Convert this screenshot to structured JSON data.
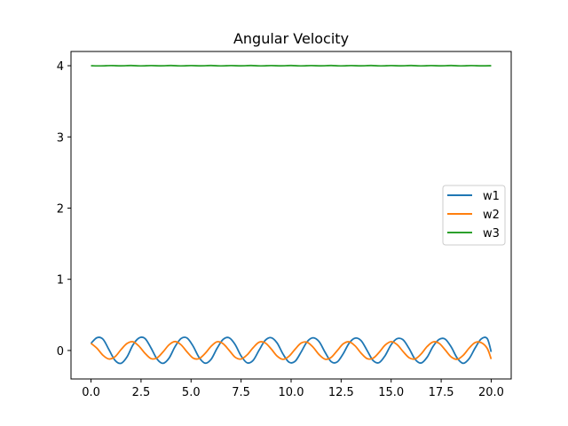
{
  "chart_data": {
    "type": "line",
    "title": "Angular Velocity",
    "xlabel": "",
    "ylabel": "",
    "xlim": [
      -1,
      21
    ],
    "ylim": [
      -0.4,
      4.2
    ],
    "xticks": [
      0.0,
      2.5,
      5.0,
      7.5,
      10.0,
      12.5,
      15.0,
      17.5,
      20.0
    ],
    "xtick_labels": [
      "0.0",
      "2.5",
      "5.0",
      "7.5",
      "10.0",
      "12.5",
      "15.0",
      "17.5",
      "20.0"
    ],
    "yticks": [
      0,
      1,
      2,
      3,
      4
    ],
    "ytick_labels": [
      "0",
      "1",
      "2",
      "3",
      "4"
    ],
    "grid": false,
    "legend_position": "center-right",
    "series": [
      {
        "name": "w1",
        "color": "#1f77b4",
        "x": [
          0.0,
          0.3,
          0.6,
          0.9,
          1.2,
          1.5,
          1.8,
          2.1,
          2.4,
          2.7,
          3.0,
          3.3,
          3.6,
          3.9,
          4.2,
          4.5,
          4.8,
          5.1,
          5.4,
          5.7,
          6.0,
          6.3,
          6.6,
          6.9,
          7.2,
          7.5,
          7.8,
          8.1,
          8.4,
          8.7,
          9.0,
          9.3,
          9.6,
          9.9,
          10.2,
          10.5,
          10.8,
          11.1,
          11.4,
          11.7,
          12.0,
          12.3,
          12.6,
          12.9,
          13.2,
          13.5,
          13.8,
          14.1,
          14.4,
          14.7,
          15.0,
          15.3,
          15.6,
          15.9,
          16.2,
          16.5,
          16.8,
          17.1,
          17.4,
          17.7,
          18.0,
          18.3,
          18.6,
          18.9,
          19.2,
          19.5,
          19.8,
          20.0
        ],
        "y": [
          0.1,
          0.18,
          0.158,
          0.01,
          -0.138,
          -0.18,
          -0.09,
          0.08,
          0.176,
          0.168,
          0.035,
          -0.12,
          -0.18,
          -0.108,
          0.054,
          0.168,
          0.175,
          0.062,
          -0.098,
          -0.178,
          -0.125,
          0.03,
          0.155,
          0.179,
          0.085,
          -0.076,
          -0.173,
          -0.14,
          0.004,
          0.14,
          0.18,
          0.106,
          -0.052,
          -0.165,
          -0.152,
          -0.022,
          0.123,
          0.178,
          0.124,
          -0.026,
          -0.156,
          -0.162,
          -0.048,
          0.103,
          0.174,
          0.138,
          0.0,
          -0.142,
          -0.17,
          -0.072,
          0.082,
          0.166,
          0.15,
          0.026,
          -0.125,
          -0.176,
          -0.094,
          0.06,
          0.156,
          0.16,
          0.05,
          -0.106,
          -0.18,
          -0.114,
          0.036,
          0.162,
          0.168,
          -0.02
        ]
      },
      {
        "name": "w2",
        "color": "#ff7f0e",
        "x": [
          0.0,
          0.3,
          0.6,
          0.9,
          1.2,
          1.5,
          1.8,
          2.1,
          2.4,
          2.7,
          3.0,
          3.3,
          3.6,
          3.9,
          4.2,
          4.5,
          4.8,
          5.1,
          5.4,
          5.7,
          6.0,
          6.3,
          6.6,
          6.9,
          7.2,
          7.5,
          7.8,
          8.1,
          8.4,
          8.7,
          9.0,
          9.3,
          9.6,
          9.9,
          10.2,
          10.5,
          10.8,
          11.1,
          11.4,
          11.7,
          12.0,
          12.3,
          12.6,
          12.9,
          13.2,
          13.5,
          13.8,
          14.1,
          14.4,
          14.7,
          15.0,
          15.3,
          15.6,
          15.9,
          16.2,
          16.5,
          16.8,
          17.1,
          17.4,
          17.7,
          18.0,
          18.3,
          18.6,
          18.9,
          19.2,
          19.5,
          19.8,
          20.0
        ],
        "y": [
          0.1,
          0.03,
          -0.068,
          -0.12,
          -0.088,
          0.012,
          0.098,
          0.122,
          0.06,
          -0.04,
          -0.114,
          -0.104,
          -0.02,
          0.08,
          0.126,
          0.08,
          -0.02,
          -0.106,
          -0.114,
          -0.042,
          0.058,
          0.122,
          0.096,
          0.004,
          -0.094,
          -0.12,
          -0.062,
          0.038,
          0.116,
          0.108,
          0.024,
          -0.078,
          -0.124,
          -0.08,
          0.018,
          0.104,
          0.116,
          0.046,
          -0.058,
          -0.122,
          -0.098,
          -0.004,
          0.092,
          0.122,
          0.064,
          -0.038,
          -0.114,
          -0.108,
          -0.026,
          0.076,
          0.124,
          0.082,
          -0.016,
          -0.102,
          -0.118,
          -0.048,
          0.056,
          0.12,
          0.1,
          0.008,
          -0.09,
          -0.124,
          -0.068,
          0.034,
          0.112,
          0.11,
          0.03,
          -0.12
        ]
      },
      {
        "name": "w3",
        "color": "#2ca02c",
        "x": [
          0.0,
          0.5,
          1.0,
          1.5,
          2.0,
          2.5,
          3.0,
          3.5,
          4.0,
          4.5,
          5.0,
          5.5,
          6.0,
          6.5,
          7.0,
          7.5,
          8.0,
          8.5,
          9.0,
          9.5,
          10.0,
          10.5,
          11.0,
          11.5,
          12.0,
          12.5,
          13.0,
          13.5,
          14.0,
          14.5,
          15.0,
          15.5,
          16.0,
          16.5,
          17.0,
          17.5,
          18.0,
          18.5,
          19.0,
          19.5,
          20.0
        ],
        "y": [
          4.0,
          3.997,
          4.002,
          3.998,
          4.003,
          3.997,
          4.002,
          3.998,
          4.003,
          3.997,
          4.002,
          3.998,
          4.003,
          3.997,
          4.002,
          3.998,
          4.003,
          3.997,
          4.002,
          3.998,
          4.003,
          3.997,
          4.002,
          3.998,
          4.003,
          3.997,
          4.002,
          3.998,
          4.003,
          3.997,
          4.002,
          3.998,
          4.003,
          3.997,
          4.002,
          3.998,
          4.003,
          3.997,
          4.002,
          3.998,
          4.0
        ]
      }
    ]
  }
}
